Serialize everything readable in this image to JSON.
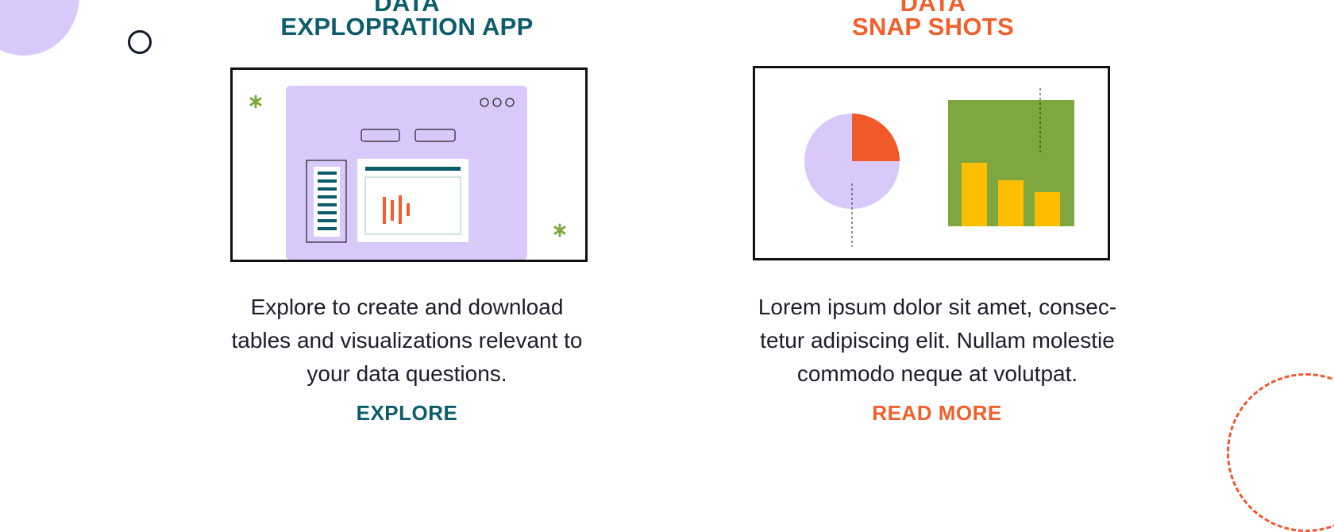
{
  "decor": {
    "accent_purple": "#d9c9fb",
    "accent_orange": "#f05a2b",
    "teal": "#0d5c6b",
    "green": "#7ea83f",
    "yellow": "#ffbf00"
  },
  "cards": [
    {
      "title_line1": "DATA",
      "title_line2": "EXPLOPRATION APP",
      "description_lines": [
        "Explore to create and download",
        "tables and visualizations relevant to",
        "your data questions."
      ],
      "cta_label": "EXPLORE",
      "illustration": "app-window-illustration"
    },
    {
      "title_line1": "DATA",
      "title_line2": "SNAP SHOTS",
      "description_lines": [
        "Lorem ipsum dolor sit amet, consec-",
        "tetur adipiscing elit. Nullam molestie",
        "commodo neque at volutpat."
      ],
      "cta_label": "READ MORE",
      "illustration": "charts-illustration",
      "chart": {
        "pie_slices": [
          25,
          75
        ],
        "bars": [
          80,
          58,
          43
        ]
      }
    }
  ]
}
